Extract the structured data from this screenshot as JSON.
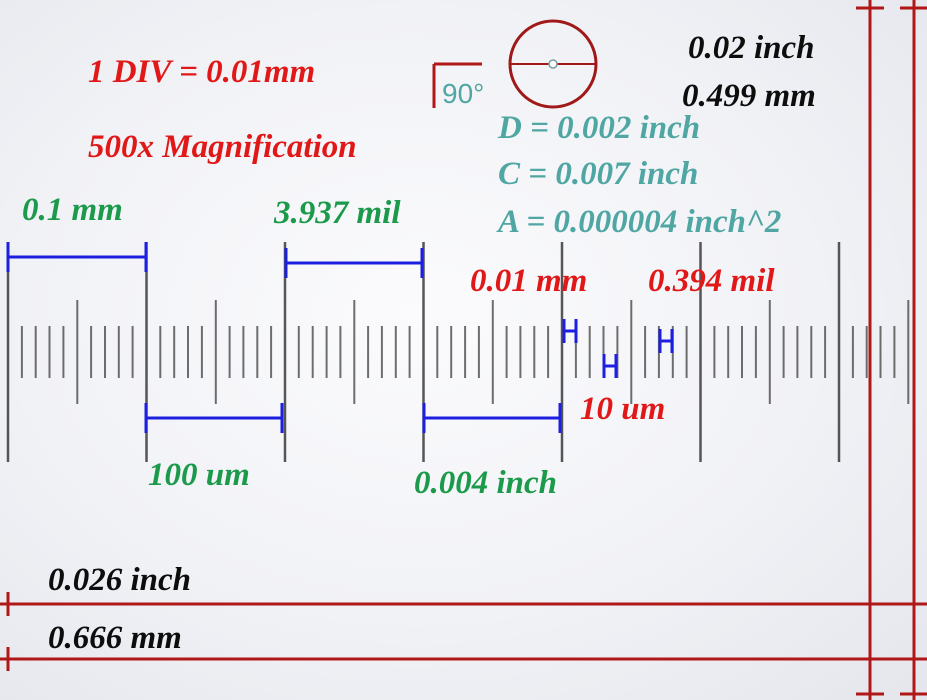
{
  "header": {
    "div_scale": "1 DIV = 0.01mm",
    "magnification": "500x Magnification"
  },
  "angle_tool": {
    "value": "90°"
  },
  "circle_tool": {
    "diameter": "D = 0.002 inch",
    "circumference": "C = 0.007 inch",
    "area": "A = 0.000004 inch^2"
  },
  "top_right_measure": {
    "inch": "0.02 inch",
    "mm": "0.499 mm"
  },
  "scale_measurements": {
    "m1": "0.1 mm",
    "m2": "3.937 mil",
    "m3": "0.01 mm",
    "m4": "0.394 mil",
    "m5": "10 um",
    "m6": "100 um",
    "m7": "0.004 inch"
  },
  "bottom_measure": {
    "inch": "0.026 inch",
    "mm": "0.666 mm"
  },
  "colors": {
    "red_annotation": "#e01818",
    "green_annotation": "#1a9a4a",
    "teal_annotation": "#4fa6a3",
    "measure_line_red": "#b01818",
    "measure_line_blue": "#1d1fe0",
    "scale_tick": "#4a4a4a"
  }
}
